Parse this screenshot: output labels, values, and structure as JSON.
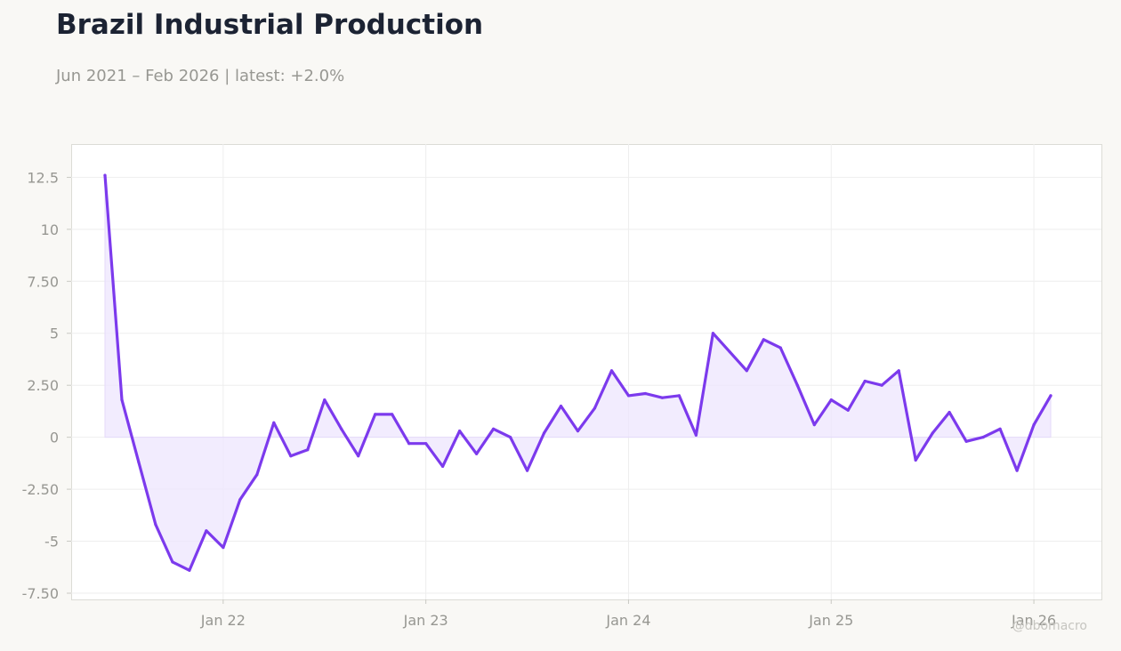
{
  "header": {
    "title": "Brazil Industrial Production",
    "subtitle": "Jun 2021 – Feb 2026 | latest: +2.0%"
  },
  "watermark": "@dbomacro",
  "colors": {
    "background": "#f9f8f5",
    "line": "#7c3aed",
    "fill": "#ede5fd",
    "grid": "#eeeeee",
    "axis_text": "#979792"
  },
  "chart_data": {
    "type": "area",
    "title": "Brazil Industrial Production",
    "xlabel": "",
    "ylabel": "",
    "ylim": [
      -7.8,
      14.1
    ],
    "yticks": [
      -7.5,
      -5,
      -2.5,
      0,
      2.5,
      5,
      7.5,
      10,
      12.5
    ],
    "ytick_labels": [
      "-7.50",
      "-5",
      "-2.50",
      "0",
      "2.50",
      "5",
      "7.50",
      "10",
      "12.5"
    ],
    "xlim": [
      "2021-04",
      "2026-05"
    ],
    "xticks": [
      "2022-01",
      "2023-01",
      "2024-01",
      "2025-01",
      "2026-01"
    ],
    "xtick_labels": [
      "Jan 22",
      "Jan 23",
      "Jan 24",
      "Jan 25",
      "Jan 26"
    ],
    "grid": true,
    "series": [
      {
        "x": [
          "2021-06",
          "2021-07",
          "2021-08",
          "2021-09",
          "2021-10",
          "2021-11",
          "2021-12",
          "2022-01",
          "2022-02",
          "2022-03",
          "2022-04",
          "2022-05",
          "2022-06",
          "2022-07",
          "2022-08",
          "2022-09",
          "2022-10",
          "2022-11",
          "2022-12",
          "2023-01",
          "2023-02",
          "2023-03",
          "2023-04",
          "2023-05",
          "2023-06",
          "2023-07",
          "2023-08",
          "2023-09",
          "2023-10",
          "2023-11",
          "2023-12",
          "2024-01",
          "2024-02",
          "2024-03",
          "2024-04",
          "2024-05",
          "2024-06",
          "2024-07",
          "2024-08",
          "2024-09",
          "2024-10",
          "2024-11",
          "2024-12",
          "2025-01",
          "2025-02",
          "2025-03",
          "2025-04",
          "2025-05",
          "2025-06",
          "2025-07",
          "2025-08",
          "2025-09",
          "2025-10",
          "2025-11",
          "2025-12",
          "2026-01",
          "2026-02"
        ],
        "values": [
          12.6,
          1.8,
          -1.2,
          -4.2,
          -6.0,
          -6.4,
          -4.5,
          -5.3,
          -3.0,
          -1.8,
          0.7,
          -0.9,
          -0.6,
          1.8,
          0.4,
          -0.9,
          1.1,
          1.1,
          -0.3,
          -0.3,
          -1.4,
          0.3,
          -0.8,
          0.4,
          0.0,
          -1.6,
          0.2,
          1.5,
          0.3,
          1.4,
          3.2,
          2.0,
          2.1,
          1.9,
          2.0,
          0.1,
          5.0,
          4.1,
          3.2,
          4.7,
          4.3,
          2.5,
          0.6,
          1.8,
          1.3,
          2.7,
          2.5,
          3.2,
          -1.1,
          0.2,
          1.2,
          -0.2,
          0.0,
          0.4,
          -1.6,
          0.6,
          2.0
        ]
      }
    ]
  }
}
